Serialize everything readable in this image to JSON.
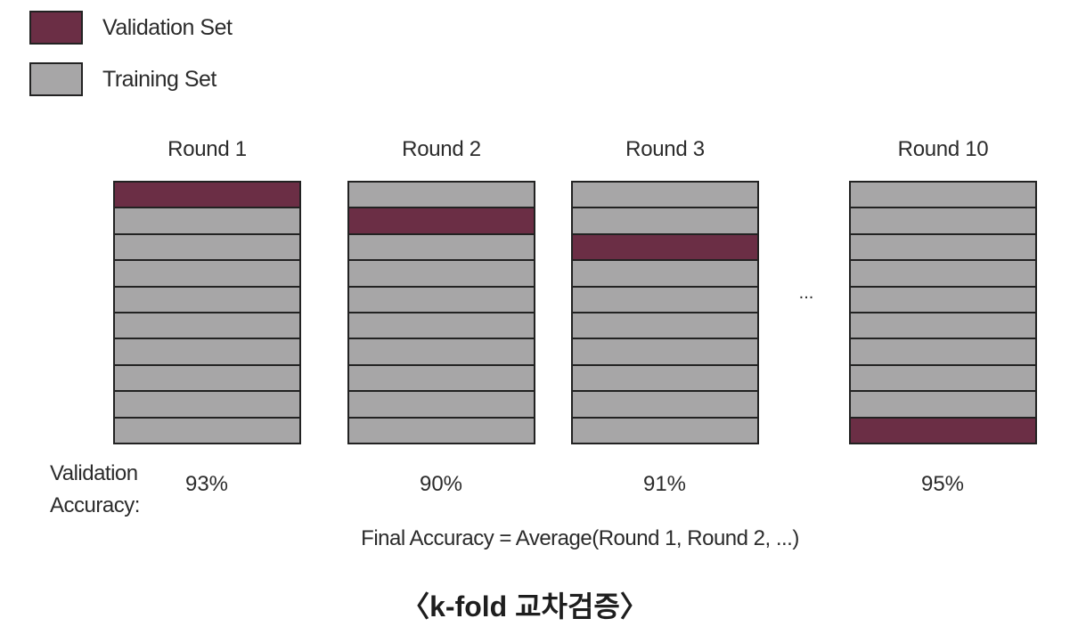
{
  "legend": [
    {
      "label": "Validation Set",
      "color": "#6b2e45"
    },
    {
      "label": "Training Set",
      "color": "#a7a6a7"
    }
  ],
  "rounds": [
    {
      "title": "Round 1",
      "validation_fold": 1,
      "accuracy": "93%"
    },
    {
      "title": "Round 2",
      "validation_fold": 2,
      "accuracy": "90%"
    },
    {
      "title": "Round 3",
      "validation_fold": 3,
      "accuracy": "91%"
    },
    {
      "title": "Round 10",
      "validation_fold": 10,
      "accuracy": "95%"
    }
  ],
  "folds_per_round": 10,
  "ellipsis": "...",
  "accuracy_label": [
    "Validation",
    "Accuracy:"
  ],
  "final_formula": "Final Accuracy = Average(Round 1, Round 2, ...)",
  "caption": "〈k-fold 교차검증〉"
}
